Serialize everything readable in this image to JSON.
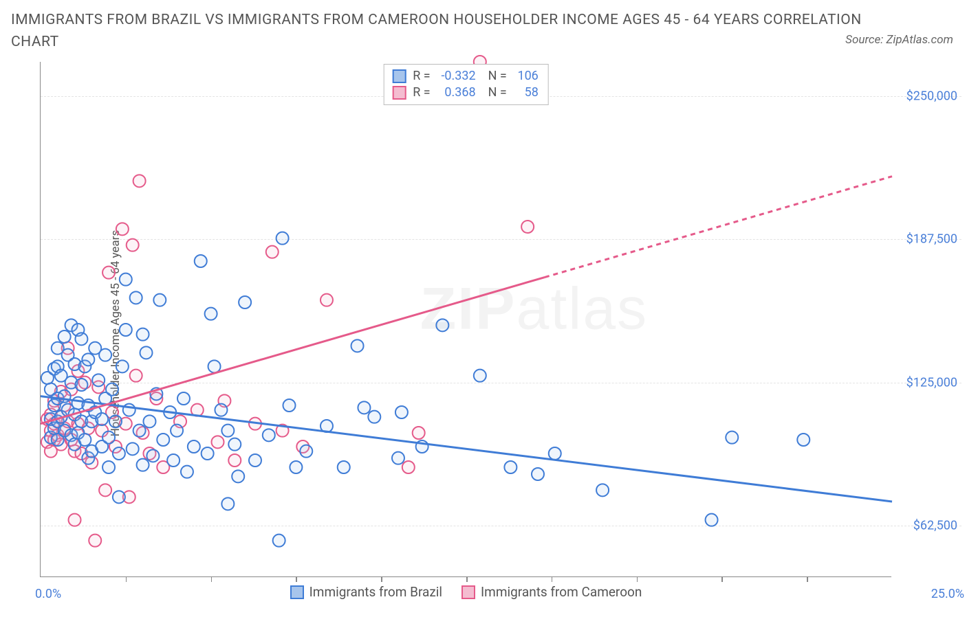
{
  "title": "IMMIGRANTS FROM BRAZIL VS IMMIGRANTS FROM CAMEROON HOUSEHOLDER INCOME AGES 45 - 64 YEARS CORRELATION CHART",
  "source_text": "Source: ZipAtlas.com",
  "watermark": {
    "part1": "ZIP",
    "part2": "atlas"
  },
  "chart": {
    "type": "scatter",
    "y_axis_title": "Householder Income Ages 45 - 64 years",
    "xlim": [
      0,
      25
    ],
    "ylim": [
      40000,
      265000
    ],
    "x_tick_min_label": "0.0%",
    "x_tick_max_label": "25.0%",
    "x_minor_ticks": [
      2.5,
      5.0,
      7.5,
      10.0,
      12.5,
      15.0,
      17.5,
      20.0,
      22.5
    ],
    "y_ticks": [
      62500,
      125000,
      187500,
      250000
    ],
    "y_tick_labels": [
      "$62,500",
      "$125,000",
      "$187,500",
      "$250,000"
    ],
    "background_color": "#ffffff",
    "grid_color": "#e3e3e3",
    "axis_color": "#888888",
    "tick_label_color": "#4a7fd8",
    "title_fontsize": 21,
    "label_fontsize": 17,
    "tick_label_fontsize": 18,
    "marker_radius": 9,
    "marker_stroke_width": 2,
    "marker_fill_opacity": 0.18,
    "trend_stroke_width": 3
  },
  "series": {
    "brazil": {
      "label": "Immigrants from Brazil",
      "stroke": "#3f7cd6",
      "fill": "#a7c5ec",
      "R": "-0.332",
      "N": "106",
      "trend": {
        "x1": 0,
        "y1": 119000,
        "x2": 25,
        "y2": 73000,
        "dashed_from_x": null
      },
      "points": [
        [
          0.2,
          127000
        ],
        [
          0.3,
          122000
        ],
        [
          0.3,
          109000
        ],
        [
          0.3,
          101000
        ],
        [
          0.4,
          131000
        ],
        [
          0.4,
          115000
        ],
        [
          0.4,
          105000
        ],
        [
          0.5,
          140000
        ],
        [
          0.5,
          132000
        ],
        [
          0.5,
          118000
        ],
        [
          0.5,
          108000
        ],
        [
          0.5,
          100000
        ],
        [
          0.6,
          128000
        ],
        [
          0.6,
          110000
        ],
        [
          0.7,
          145000
        ],
        [
          0.7,
          119000
        ],
        [
          0.7,
          104000
        ],
        [
          0.8,
          137000
        ],
        [
          0.8,
          113000
        ],
        [
          0.9,
          150000
        ],
        [
          0.9,
          125000
        ],
        [
          0.9,
          102000
        ],
        [
          1.0,
          133000
        ],
        [
          1.0,
          111000
        ],
        [
          1.0,
          98000
        ],
        [
          1.1,
          148000
        ],
        [
          1.1,
          116000
        ],
        [
          1.1,
          103000
        ],
        [
          1.2,
          144000
        ],
        [
          1.2,
          124000
        ],
        [
          1.2,
          108000
        ],
        [
          1.3,
          132000
        ],
        [
          1.3,
          100000
        ],
        [
          1.4,
          135000
        ],
        [
          1.4,
          115000
        ],
        [
          1.4,
          92000
        ],
        [
          1.5,
          108000
        ],
        [
          1.5,
          95000
        ],
        [
          1.6,
          140000
        ],
        [
          1.6,
          112000
        ],
        [
          1.7,
          126000
        ],
        [
          1.8,
          109000
        ],
        [
          1.8,
          97000
        ],
        [
          1.9,
          137000
        ],
        [
          1.9,
          118000
        ],
        [
          2.0,
          101000
        ],
        [
          2.0,
          88000
        ],
        [
          2.1,
          122000
        ],
        [
          2.2,
          108000
        ],
        [
          2.3,
          94000
        ],
        [
          2.3,
          75000
        ],
        [
          2.4,
          132000
        ],
        [
          2.5,
          170000
        ],
        [
          2.5,
          148000
        ],
        [
          2.6,
          113000
        ],
        [
          2.7,
          96000
        ],
        [
          2.8,
          162000
        ],
        [
          2.9,
          104000
        ],
        [
          3.0,
          146000
        ],
        [
          3.0,
          89000
        ],
        [
          3.1,
          138000
        ],
        [
          3.2,
          108000
        ],
        [
          3.3,
          93000
        ],
        [
          3.4,
          120000
        ],
        [
          3.5,
          161000
        ],
        [
          3.6,
          100000
        ],
        [
          3.8,
          112000
        ],
        [
          3.9,
          91000
        ],
        [
          4.0,
          104000
        ],
        [
          4.2,
          118000
        ],
        [
          4.3,
          86000
        ],
        [
          4.5,
          97000
        ],
        [
          4.7,
          178000
        ],
        [
          4.9,
          94000
        ],
        [
          5.0,
          155000
        ],
        [
          5.1,
          132000
        ],
        [
          5.3,
          113000
        ],
        [
          5.5,
          104000
        ],
        [
          5.5,
          72000
        ],
        [
          5.7,
          98000
        ],
        [
          5.8,
          84000
        ],
        [
          6.0,
          160000
        ],
        [
          6.3,
          91000
        ],
        [
          6.7,
          102000
        ],
        [
          7.0,
          56000
        ],
        [
          7.1,
          188000
        ],
        [
          7.3,
          115000
        ],
        [
          7.5,
          88000
        ],
        [
          7.8,
          95000
        ],
        [
          8.4,
          106000
        ],
        [
          8.9,
          88000
        ],
        [
          9.3,
          141000
        ],
        [
          9.5,
          114000
        ],
        [
          9.8,
          110000
        ],
        [
          10.5,
          92000
        ],
        [
          10.6,
          112000
        ],
        [
          11.2,
          97000
        ],
        [
          11.8,
          150000
        ],
        [
          12.9,
          128000
        ],
        [
          13.8,
          88000
        ],
        [
          14.6,
          85000
        ],
        [
          15.1,
          94000
        ],
        [
          16.5,
          78000
        ],
        [
          19.7,
          65000
        ],
        [
          20.3,
          101000
        ],
        [
          22.4,
          100000
        ]
      ]
    },
    "cameroon": {
      "label": "Immigrants from Cameroon",
      "stroke": "#e55a8a",
      "fill": "#f4bcd0",
      "R": "0.368",
      "N": "58",
      "trend": {
        "x1": 0,
        "y1": 107000,
        "x2": 25,
        "y2": 215000,
        "dashed_from_x": 14.8
      },
      "points": [
        [
          0.2,
          109000
        ],
        [
          0.2,
          99000
        ],
        [
          0.3,
          111000
        ],
        [
          0.3,
          104000
        ],
        [
          0.3,
          95000
        ],
        [
          0.4,
          117000
        ],
        [
          0.4,
          107000
        ],
        [
          0.4,
          100000
        ],
        [
          0.5,
          108000
        ],
        [
          0.5,
          102000
        ],
        [
          0.6,
          121000
        ],
        [
          0.6,
          110000
        ],
        [
          0.6,
          98000
        ],
        [
          0.7,
          115000
        ],
        [
          0.7,
          105000
        ],
        [
          0.8,
          140000
        ],
        [
          0.8,
          108000
        ],
        [
          0.9,
          122000
        ],
        [
          0.9,
          100000
        ],
        [
          1.0,
          95000
        ],
        [
          1.0,
          65000
        ],
        [
          1.1,
          130000
        ],
        [
          1.1,
          107000
        ],
        [
          1.2,
          94000
        ],
        [
          1.3,
          125000
        ],
        [
          1.4,
          105000
        ],
        [
          1.5,
          90000
        ],
        [
          1.6,
          56000
        ],
        [
          1.7,
          123000
        ],
        [
          1.8,
          104000
        ],
        [
          1.9,
          78000
        ],
        [
          2.0,
          173000
        ],
        [
          2.1,
          112000
        ],
        [
          2.2,
          97000
        ],
        [
          2.4,
          192000
        ],
        [
          2.5,
          107000
        ],
        [
          2.6,
          75000
        ],
        [
          2.7,
          185000
        ],
        [
          2.8,
          128000
        ],
        [
          2.9,
          213000
        ],
        [
          3.0,
          103000
        ],
        [
          3.2,
          94000
        ],
        [
          3.4,
          118000
        ],
        [
          3.6,
          88000
        ],
        [
          4.1,
          108000
        ],
        [
          4.6,
          113000
        ],
        [
          5.2,
          99000
        ],
        [
          5.4,
          117000
        ],
        [
          5.7,
          91000
        ],
        [
          6.3,
          107000
        ],
        [
          6.8,
          182000
        ],
        [
          7.1,
          104000
        ],
        [
          7.7,
          97000
        ],
        [
          8.4,
          161000
        ],
        [
          10.8,
          88000
        ],
        [
          11.1,
          103000
        ],
        [
          12.9,
          265000
        ],
        [
          14.3,
          193000
        ]
      ]
    }
  },
  "legend_bottom": [
    {
      "key": "brazil"
    },
    {
      "key": "cameroon"
    }
  ]
}
